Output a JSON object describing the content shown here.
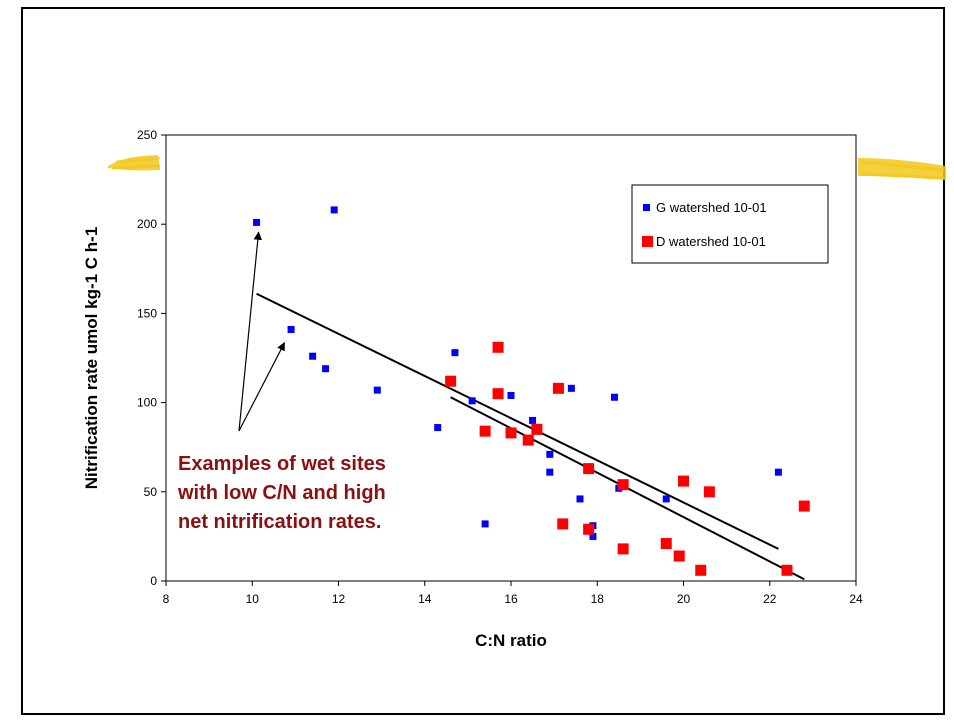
{
  "chart_data": {
    "type": "scatter",
    "title": "",
    "xlabel": "C:N ratio",
    "ylabel": "Nitrification rate umol kg-1 C h-1",
    "xlim": [
      8,
      24
    ],
    "ylim": [
      0,
      250
    ],
    "xticks": [
      "8",
      "10",
      "12",
      "14",
      "16",
      "18",
      "20",
      "22",
      "24"
    ],
    "yticks": [
      "0",
      "50",
      "100",
      "150",
      "200",
      "250"
    ],
    "grid": false,
    "legend_position": "top-right",
    "series": [
      {
        "name": "G watershed 10-01",
        "color": "#0000ff",
        "marker": "square-small",
        "points": [
          [
            10.1,
            201
          ],
          [
            10.9,
            141
          ],
          [
            11.4,
            126
          ],
          [
            11.7,
            119
          ],
          [
            11.9,
            208
          ],
          [
            12.9,
            107
          ],
          [
            14.3,
            86
          ],
          [
            14.7,
            128
          ],
          [
            15.1,
            101
          ],
          [
            15.4,
            32
          ],
          [
            16.0,
            104
          ],
          [
            16.5,
            90
          ],
          [
            16.9,
            71
          ],
          [
            16.9,
            61
          ],
          [
            17.4,
            108
          ],
          [
            17.6,
            46
          ],
          [
            17.9,
            25
          ],
          [
            17.9,
            31
          ],
          [
            18.4,
            103
          ],
          [
            18.5,
            52
          ],
          [
            19.6,
            46
          ],
          [
            22.2,
            61
          ]
        ]
      },
      {
        "name": "D watershed 10-01",
        "color": "#ff0000",
        "marker": "square-large",
        "points": [
          [
            14.6,
            112
          ],
          [
            15.4,
            84
          ],
          [
            15.7,
            131
          ],
          [
            15.7,
            105
          ],
          [
            16.0,
            83
          ],
          [
            16.4,
            79
          ],
          [
            16.6,
            85
          ],
          [
            17.1,
            108
          ],
          [
            17.2,
            32
          ],
          [
            17.8,
            63
          ],
          [
            17.8,
            29
          ],
          [
            18.6,
            54
          ],
          [
            18.6,
            18
          ],
          [
            19.6,
            21
          ],
          [
            19.9,
            14
          ],
          [
            20.0,
            56
          ],
          [
            20.4,
            6
          ],
          [
            20.6,
            50
          ],
          [
            22.4,
            6
          ],
          [
            22.8,
            42
          ]
        ]
      }
    ],
    "trendlines": [
      {
        "from": [
          10.1,
          161
        ],
        "to": [
          22.2,
          18
        ]
      },
      {
        "from": [
          14.6,
          103
        ],
        "to": [
          22.8,
          1
        ]
      }
    ],
    "annotation": {
      "lines": [
        "Examples of wet sites",
        "with low C/N and high",
        "net nitrification rates."
      ],
      "color": "#8b1010",
      "arrow_targets": [
        [
          10.1,
          200
        ],
        [
          10.7,
          138
        ]
      ]
    }
  },
  "decoration": {
    "highlight_color": "#f2c81a"
  }
}
